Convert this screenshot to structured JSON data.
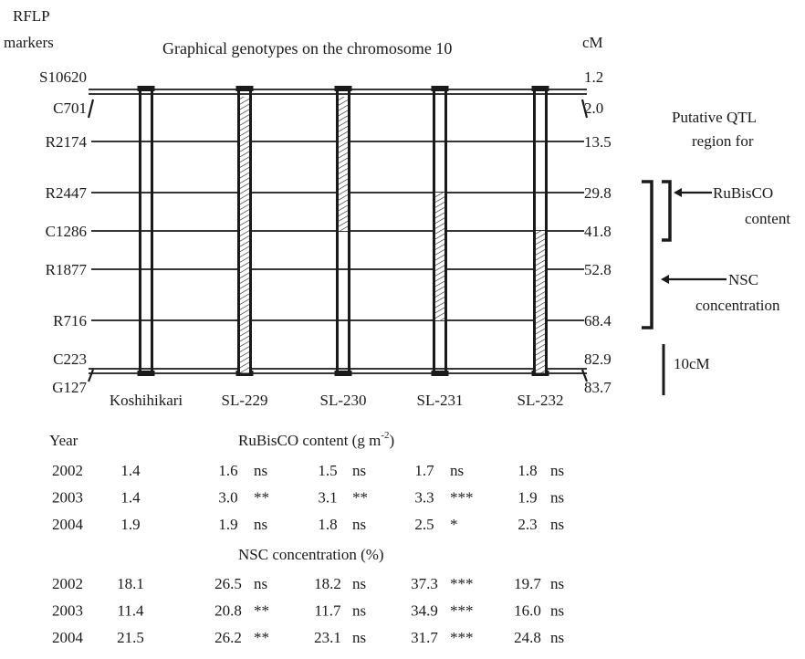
{
  "header": {
    "rflp_line1": "RFLP",
    "rflp_line2": "markers",
    "title": "Graphical genotypes on the chromosome 10",
    "cm_label": "cM"
  },
  "markers": [
    {
      "name": "S10620",
      "cM": "1.2"
    },
    {
      "name": "C701",
      "cM": "2.0"
    },
    {
      "name": "R2174",
      "cM": "13.5"
    },
    {
      "name": "R2447",
      "cM": "29.8"
    },
    {
      "name": "C1286",
      "cM": "41.8"
    },
    {
      "name": "R1877",
      "cM": "52.8"
    },
    {
      "name": "R716",
      "cM": "68.4"
    },
    {
      "name": "C223",
      "cM": "82.9"
    },
    {
      "name": "G127",
      "cM": "83.7"
    }
  ],
  "lines": [
    {
      "name": "Koshihikari",
      "introgression": null
    },
    {
      "name": "SL-229",
      "introgression": {
        "from_cM": 2.0,
        "to_cM": 83.7
      }
    },
    {
      "name": "SL-230",
      "introgression": {
        "from_cM": 2.0,
        "to_cM": 41.8
      }
    },
    {
      "name": "SL-231",
      "introgression": {
        "from_cM": 29.8,
        "to_cM": 68.4
      }
    },
    {
      "name": "SL-232",
      "introgression": {
        "from_cM": 41.8,
        "to_cM": 83.7
      }
    }
  ],
  "qtl": {
    "title_line1": "Putative QTL",
    "title_line2": "region for",
    "rubisco": {
      "line1": "RuBisCO",
      "line2": "content",
      "from_cM": 29.8,
      "to_cM": 41.8
    },
    "nsc": {
      "line1": "NSC",
      "line2": "concentration",
      "from_cM": 29.8,
      "to_cM": 68.4
    }
  },
  "scale_bar": {
    "label": "10cM",
    "length_cM": 10
  },
  "table": {
    "year_header": "Year",
    "rubisco_title": "RuBisCO content (g m",
    "rubisco_sup": "-2",
    "rubisco_close": ")",
    "nsc_title": "NSC concentration (%)",
    "rubisco_rows": [
      {
        "year": "2002",
        "values": [
          {
            "v": "1.4",
            "s": ""
          },
          {
            "v": "1.6",
            "s": "ns"
          },
          {
            "v": "1.5",
            "s": "ns"
          },
          {
            "v": "1.7",
            "s": "ns"
          },
          {
            "v": "1.8",
            "s": "ns"
          }
        ]
      },
      {
        "year": "2003",
        "values": [
          {
            "v": "1.4",
            "s": ""
          },
          {
            "v": "3.0",
            "s": "**"
          },
          {
            "v": "3.1",
            "s": "**"
          },
          {
            "v": "3.3",
            "s": "***"
          },
          {
            "v": "1.9",
            "s": "ns"
          }
        ]
      },
      {
        "year": "2004",
        "values": [
          {
            "v": "1.9",
            "s": ""
          },
          {
            "v": "1.9",
            "s": "ns"
          },
          {
            "v": "1.8",
            "s": "ns"
          },
          {
            "v": "2.5",
            "s": "*"
          },
          {
            "v": "2.3",
            "s": "ns"
          }
        ]
      }
    ],
    "nsc_rows": [
      {
        "year": "2002",
        "values": [
          {
            "v": "18.1",
            "s": ""
          },
          {
            "v": "26.5",
            "s": "ns"
          },
          {
            "v": "18.2",
            "s": "ns"
          },
          {
            "v": "37.3",
            "s": "***"
          },
          {
            "v": "19.7",
            "s": "ns"
          }
        ]
      },
      {
        "year": "2003",
        "values": [
          {
            "v": "11.4",
            "s": ""
          },
          {
            "v": "20.8",
            "s": "**"
          },
          {
            "v": "11.7",
            "s": "ns"
          },
          {
            "v": "34.9",
            "s": "***"
          },
          {
            "v": "16.0",
            "s": "ns"
          }
        ]
      },
      {
        "year": "2004",
        "values": [
          {
            "v": "21.5",
            "s": ""
          },
          {
            "v": "26.2",
            "s": "**"
          },
          {
            "v": "23.1",
            "s": "ns"
          },
          {
            "v": "31.7",
            "s": "***"
          },
          {
            "v": "24.8",
            "s": "ns"
          }
        ]
      }
    ]
  },
  "colors": {
    "ink": "#1a1a1a",
    "background": "#ffffff"
  }
}
